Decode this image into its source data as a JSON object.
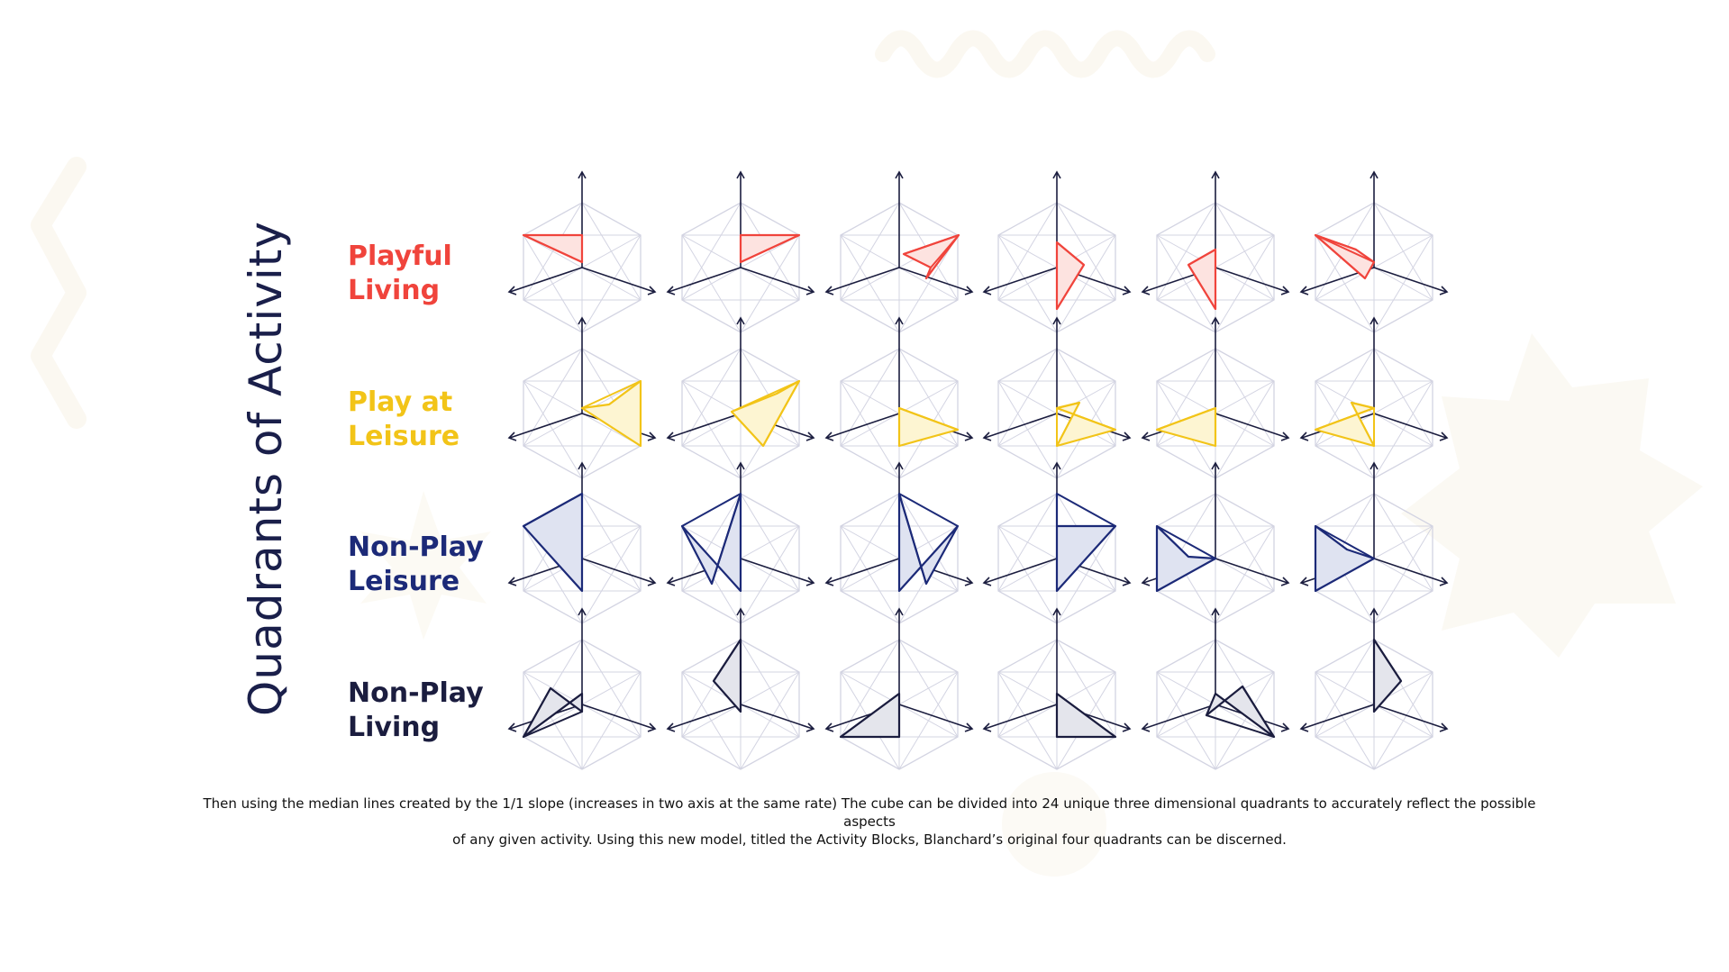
{
  "title": "Quadrants of Activity",
  "rows": [
    {
      "label_line1": "Playful",
      "label_line2": "Living",
      "color": "#f0443c",
      "fill": "#fde3e0"
    },
    {
      "label_line1": "Play at",
      "label_line2": "Leisure",
      "color": "#f2c418",
      "fill": "#fdf5d2"
    },
    {
      "label_line1": "Non-Play",
      "label_line2": "Leisure",
      "color": "#1c2a78",
      "fill": "#dfe3f1"
    },
    {
      "label_line1": "Non-Play",
      "label_line2": "Living",
      "color": "#1b1d3f",
      "fill": "#e4e5ec"
    }
  ],
  "axis_color": "#1b1d3f",
  "grid_color": "#d3d4e2",
  "caption": {
    "line1": "Then using the median lines created by the 1/1 slope (increases in two axis at the same rate) The cube can be divided into 24 unique three dimensional quadrants to accurately reflect the possible aspects",
    "line2": "of any given activity. Using this new model, titled the Activity Blocks, Blanchard’s original four quadrants can be discerned."
  }
}
